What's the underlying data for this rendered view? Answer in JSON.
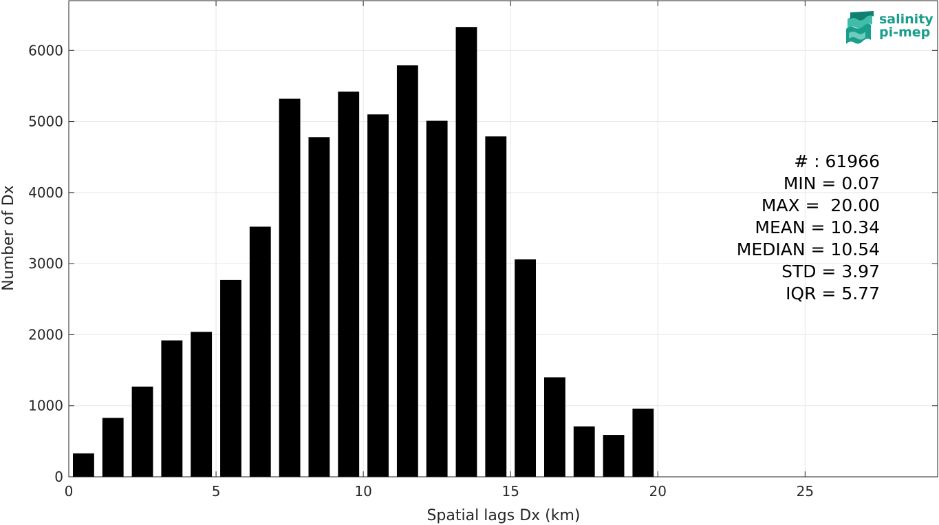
{
  "chart_data": {
    "type": "bar",
    "x": [
      0.5,
      1.5,
      2.5,
      3.5,
      4.5,
      5.5,
      6.5,
      7.5,
      8.5,
      9.5,
      10.5,
      11.5,
      12.5,
      13.5,
      14.5,
      15.5,
      16.5,
      17.5,
      18.5,
      19.5
    ],
    "values": [
      330,
      830,
      1270,
      1920,
      2040,
      2770,
      3520,
      5320,
      4780,
      5420,
      5100,
      5790,
      5010,
      6330,
      4790,
      3060,
      1400,
      710,
      590,
      960
    ],
    "xlabel": "Spatial lags Dx (km)",
    "ylabel": "Number of Dx",
    "xlim": [
      0,
      29.5
    ],
    "ylim": [
      0,
      6700
    ],
    "xticks": [
      "0",
      "5",
      "10",
      "15",
      "20",
      "25"
    ],
    "yticks": [
      "0",
      "1000",
      "2000",
      "3000",
      "4000",
      "5000",
      "6000"
    ],
    "grid": true,
    "bar_color": "#000000",
    "annotations": [
      "# : 61966",
      "MIN = 0.07",
      "MAX =  20.00",
      "MEAN = 10.34",
      "MEDIAN = 10.54",
      "STD = 3.97",
      "IQR = 5.77"
    ]
  },
  "logo": {
    "line1": "salinity",
    "line2": "pi-mep",
    "icon": "waves-icon",
    "color": "#1a9e8c"
  }
}
